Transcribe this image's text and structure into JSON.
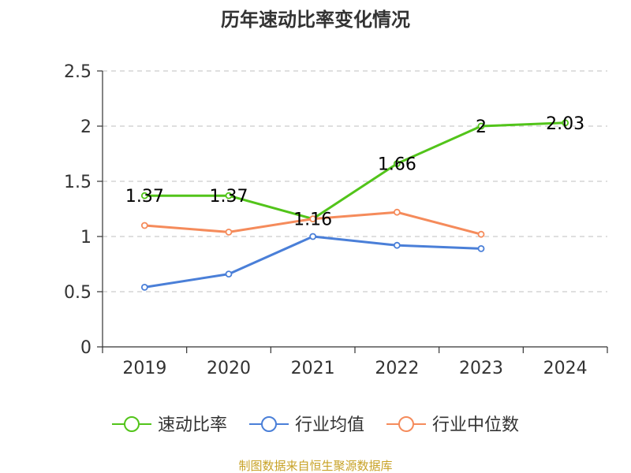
{
  "chart_data": {
    "type": "line",
    "title": "历年速动比率变化情况",
    "categories": [
      "2019",
      "2020",
      "2021",
      "2022",
      "2023",
      "2024"
    ],
    "ylim": [
      0,
      2.5
    ],
    "yticks": [
      "0",
      "0.5",
      "1",
      "1.5",
      "2",
      "2.5"
    ],
    "grid": true,
    "legend_position": "bottom",
    "series": [
      {
        "name": "速动比率",
        "color": "#52c41a",
        "values": [
          1.37,
          1.37,
          1.16,
          1.66,
          2.0,
          2.03
        ],
        "labels": [
          "1.37",
          "1.37",
          "1.16",
          "1.66",
          "2",
          "2.03"
        ]
      },
      {
        "name": "行业均值",
        "color": "#4a7fd8",
        "values": [
          0.54,
          0.66,
          1.0,
          0.92,
          0.89,
          null
        ],
        "labels": null
      },
      {
        "name": "行业中位数",
        "color": "#f58b5b",
        "values": [
          1.1,
          1.04,
          1.16,
          1.22,
          1.02,
          null
        ],
        "labels": null
      }
    ]
  },
  "footer": "制图数据来自恒生聚源数据库"
}
